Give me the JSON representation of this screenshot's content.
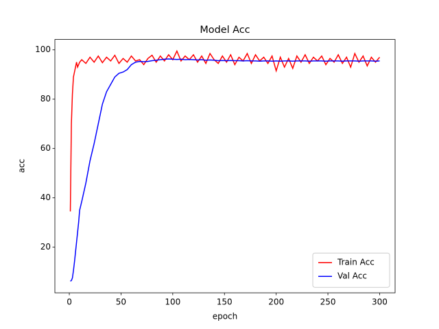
{
  "chart_data": {
    "type": "line",
    "title": "Model Acc",
    "xlabel": "epoch",
    "ylabel": "acc",
    "x": [
      1,
      2,
      3,
      4,
      5,
      6,
      7,
      8,
      9,
      10,
      12,
      16,
      20,
      24,
      28,
      32,
      36,
      40,
      44,
      48,
      52,
      56,
      60,
      64,
      68,
      72,
      76,
      80,
      84,
      88,
      92,
      96,
      100,
      104,
      108,
      112,
      116,
      120,
      124,
      128,
      132,
      136,
      140,
      144,
      148,
      152,
      156,
      160,
      164,
      168,
      172,
      176,
      180,
      184,
      188,
      192,
      196,
      200,
      204,
      208,
      212,
      216,
      220,
      224,
      228,
      232,
      236,
      240,
      244,
      248,
      252,
      256,
      260,
      264,
      268,
      272,
      276,
      280,
      284,
      288,
      292,
      296,
      300
    ],
    "series": [
      {
        "name": "Train Acc",
        "color": "#ff0000",
        "values": [
          34.5,
          70,
          82,
          89,
          91,
          93,
          95,
          93,
          94,
          95,
          96,
          94.5,
          97,
          95,
          97.5,
          94.8,
          97,
          95.5,
          97.8,
          94.5,
          96.5,
          95,
          97.5,
          95.5,
          96,
          94,
          96.5,
          97.8,
          95,
          97.5,
          95.5,
          98,
          96,
          99.5,
          95.5,
          97.5,
          96,
          98,
          95,
          97.5,
          94.5,
          98.5,
          96,
          94.5,
          97.5,
          95,
          98,
          94,
          97,
          95.5,
          98.5,
          94.5,
          98,
          95.5,
          97,
          94.5,
          97.5,
          91.5,
          97,
          93,
          96.5,
          92.5,
          97.5,
          95,
          98,
          94.5,
          97,
          95.5,
          97.5,
          94,
          96.5,
          95,
          98,
          94.5,
          97,
          93,
          98.5,
          95,
          97.5,
          93.5,
          97,
          95,
          97
        ]
      },
      {
        "name": "Val Acc",
        "color": "#0000ff",
        "values": [
          6.2,
          6.5,
          7.5,
          10.5,
          14,
          18,
          22,
          26,
          30,
          35,
          38.5,
          46,
          55,
          62,
          70,
          78,
          83,
          86,
          89,
          90.5,
          91,
          92,
          94,
          95,
          95.3,
          95.2,
          95.3,
          95.6,
          95.8,
          96,
          96.2,
          96.3,
          96.2,
          96.1,
          96.2,
          96,
          96.1,
          96,
          95.9,
          96,
          95.8,
          95.9,
          95.8,
          95.6,
          95.7,
          95.6,
          95.7,
          95.6,
          95.6,
          95.5,
          95.6,
          95.5,
          95.5,
          95.4,
          95.5,
          95.5,
          95.4,
          95.5,
          95.4,
          95.5,
          95.5,
          95.4,
          95.5,
          95.5,
          95.5,
          95.4,
          95.5,
          95.5,
          95.5,
          95.4,
          95.5,
          95.5,
          95.5,
          95.4,
          95.5,
          95.5,
          95.5,
          95.4,
          95.5,
          95.5,
          95.5,
          95.4,
          95.5
        ]
      }
    ],
    "xlim": [
      -13.95,
      314.95
    ],
    "xticks": [
      0,
      50,
      100,
      150,
      200,
      250,
      300
    ],
    "ylim": [
      1.5,
      104.2
    ],
    "yticks": [
      20,
      40,
      60,
      80,
      100
    ],
    "legend": "lower right"
  }
}
